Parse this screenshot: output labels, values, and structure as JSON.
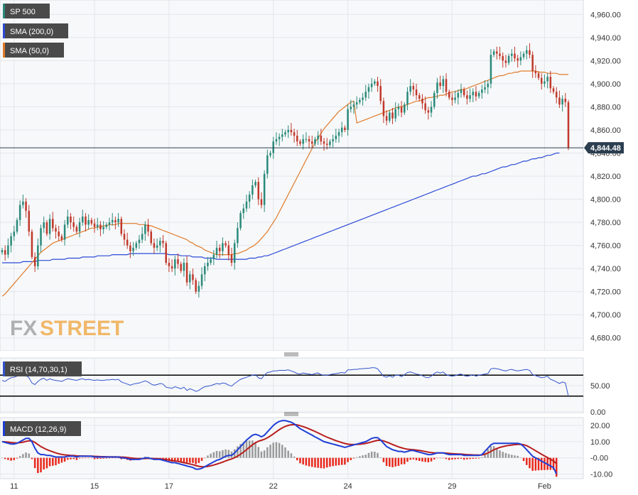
{
  "colors": {
    "background": "#ffffff",
    "plot_bg": "#f7f8fa",
    "grid": "#e3e6ea",
    "up_candle": "#2a8a7a",
    "down_candle": "#c0392b",
    "sma200": "#2b4bd6",
    "sma50": "#e07b2a",
    "rsi_line": "#3355cc",
    "macd_line": "#1f3fd6",
    "signal_line": "#b81e1e",
    "hist_pos": "#9a9a9a",
    "hist_neg": "#e8291c",
    "legend_bg": "#4a4a4a",
    "price_label_bg": "#2c3e50",
    "watermark_gray": "#b0b0b0",
    "watermark_orange": "#f0b86a"
  },
  "watermark": {
    "part1": "FX",
    "part2": "STREET"
  },
  "current_price": {
    "label": "4,844.48",
    "value": 4844.48
  },
  "x_axis": {
    "labels": [
      {
        "text": "11",
        "bar": 4
      },
      {
        "text": "15",
        "bar": 31
      },
      {
        "text": "17",
        "bar": 56
      },
      {
        "text": "22",
        "bar": 91
      },
      {
        "text": "24",
        "bar": 116
      },
      {
        "text": "29",
        "bar": 151
      },
      {
        "text": "Feb",
        "bar": 182
      }
    ]
  },
  "chart_data": [
    {
      "type": "candlestick",
      "title": "SP 500",
      "legend": [
        "SP 500",
        "SMA (200,0)",
        "SMA (50,0)"
      ],
      "ylim": [
        4670,
        4970
      ],
      "yticks": [
        "4,680.00",
        "4,700.00",
        "4,720.00",
        "4,740.00",
        "4,760.00",
        "4,780.00",
        "4,800.00",
        "4,820.00",
        "4,840.00",
        "4,860.00",
        "4,880.00",
        "4,900.00",
        "4,920.00",
        "4,940.00",
        "4,960.00"
      ],
      "ytick_values": [
        4680,
        4700,
        4720,
        4740,
        4760,
        4780,
        4800,
        4820,
        4840,
        4860,
        4880,
        4900,
        4920,
        4940,
        4960
      ],
      "grid": true,
      "close": [
        4756,
        4752,
        4760,
        4768,
        4772,
        4782,
        4795,
        4798,
        4790,
        4772,
        4750,
        4742,
        4760,
        4775,
        4780,
        4770,
        4783,
        4775,
        4772,
        4768,
        4765,
        4778,
        4785,
        4780,
        4776,
        4772,
        4780,
        4785,
        4778,
        4782,
        4779,
        4776,
        4778,
        4774,
        4776,
        4778,
        4780,
        4782,
        4780,
        4783,
        4770,
        4765,
        4760,
        4755,
        4758,
        4762,
        4765,
        4770,
        4778,
        4772,
        4762,
        4758,
        4760,
        4764,
        4762,
        4745,
        4742,
        4740,
        4748,
        4744,
        4738,
        4745,
        4728,
        4735,
        4730,
        4720,
        4725,
        4735,
        4742,
        4745,
        4748,
        4752,
        4758,
        4755,
        4762,
        4760,
        4752,
        4745,
        4762,
        4775,
        4788,
        4792,
        4798,
        4804,
        4812,
        4815,
        4800,
        4795,
        4822,
        4838,
        4840,
        4850,
        4852,
        4854,
        4856,
        4858,
        4860,
        4858,
        4855,
        4850,
        4848,
        4852,
        4852,
        4850,
        4848,
        4852,
        4855,
        4850,
        4848,
        4847,
        4850,
        4852,
        4855,
        4858,
        4862,
        4860,
        4878,
        4880,
        4882,
        4884,
        4886,
        4888,
        4893,
        4897,
        4900,
        4902,
        4898,
        4885,
        4872,
        4868,
        4875,
        4870,
        4878,
        4880,
        4875,
        4882,
        4893,
        4898,
        4895,
        4890,
        4887,
        4883,
        4877,
        4875,
        4880,
        4892,
        4901,
        4898,
        4904,
        4893,
        4888,
        4886,
        4888,
        4892,
        4895,
        4890,
        4887,
        4890,
        4893,
        4889,
        4892,
        4895,
        4897,
        4900,
        4925,
        4928,
        4926,
        4924,
        4920,
        4918,
        4924,
        4926,
        4922,
        4920,
        4923,
        4926,
        4929,
        4925,
        4911,
        4909,
        4905,
        4900,
        4902,
        4906,
        4896,
        4893,
        4888,
        4882,
        4887,
        4884,
        4844.48
      ],
      "sma_200": [
        4745,
        4745,
        4745,
        4745,
        4745,
        4745,
        4745,
        4746,
        4746,
        4746,
        4746,
        4746,
        4747,
        4747,
        4747,
        4747,
        4747,
        4748,
        4748,
        4748,
        4748,
        4748,
        4749,
        4749,
        4749,
        4749,
        4749,
        4750,
        4750,
        4750,
        4750,
        4750,
        4751,
        4751,
        4751,
        4751,
        4751,
        4752,
        4752,
        4752,
        4752,
        4752,
        4752,
        4753,
        4753,
        4753,
        4753,
        4753,
        4753,
        4753,
        4753,
        4753,
        4753,
        4753,
        4753,
        4753,
        4752,
        4752,
        4752,
        4752,
        4751,
        4751,
        4751,
        4751,
        4750,
        4750,
        4750,
        4750,
        4749,
        4749,
        4749,
        4749,
        4748,
        4748,
        4748,
        4748,
        4748,
        4748,
        4748,
        4748,
        4748,
        4748,
        4748,
        4749,
        4749,
        4749,
        4750,
        4750,
        4751,
        4751,
        4752,
        4753,
        4754,
        4755,
        4756,
        4757,
        4758,
        4759,
        4760,
        4761,
        4762,
        4763,
        4764,
        4765,
        4766,
        4767,
        4768,
        4769,
        4770,
        4771,
        4772,
        4773,
        4774,
        4775,
        4776,
        4777,
        4778,
        4779,
        4780,
        4781,
        4782,
        4783,
        4784,
        4785,
        4786,
        4787,
        4788,
        4789,
        4790,
        4791,
        4792,
        4793,
        4794,
        4795,
        4796,
        4797,
        4798,
        4799,
        4800,
        4801,
        4802,
        4803,
        4804,
        4805,
        4806,
        4807,
        4808,
        4809,
        4810,
        4811,
        4812,
        4813,
        4814,
        4815,
        4816,
        4817,
        4818,
        4819,
        4820,
        4820,
        4821,
        4822,
        4822,
        4823,
        4824,
        4825,
        4826,
        4827,
        4828,
        4828,
        4829,
        4830,
        4830,
        4831,
        4832,
        4833,
        4833,
        4834,
        4835,
        4835,
        4836,
        4836,
        4837,
        4838,
        4838,
        4839,
        4840,
        4840
      ],
      "sma_50": [
        4716,
        4718,
        4721,
        4724,
        4727,
        4730,
        4733,
        4736,
        4739,
        4742,
        4745,
        4748,
        4751,
        4754,
        4756,
        4758,
        4760,
        4762,
        4763,
        4764,
        4765,
        4766,
        4767,
        4768,
        4769,
        4770,
        4771,
        4772,
        4773,
        4774,
        4775,
        4775,
        4776,
        4776,
        4777,
        4777,
        4778,
        4778,
        4778,
        4779,
        4779,
        4779,
        4779,
        4779,
        4779,
        4779,
        4778,
        4778,
        4778,
        4777,
        4777,
        4776,
        4775,
        4774,
        4773,
        4772,
        4771,
        4770,
        4769,
        4768,
        4767,
        4766,
        4765,
        4763,
        4762,
        4760,
        4759,
        4758,
        4756,
        4755,
        4754,
        4753,
        4752,
        4752,
        4752,
        4752,
        4752,
        4752,
        4753,
        4753,
        4754,
        4755,
        4756,
        4758,
        4759,
        4761,
        4763,
        4766,
        4769,
        4772,
        4776,
        4780,
        4784,
        4789,
        4794,
        4799,
        4804,
        4809,
        4814,
        4819,
        4824,
        4829,
        4834,
        4839,
        4844,
        4849,
        4853,
        4857,
        4861,
        4864,
        4867,
        4870,
        4873,
        4876,
        4878,
        4880,
        4882,
        4884,
        4885,
        4866,
        4867,
        4868,
        4869,
        4870,
        4871,
        4872,
        4873,
        4874,
        4875,
        4876,
        4877,
        4878,
        4879,
        4880,
        4880,
        4881,
        4882,
        4883,
        4884,
        4885,
        4885,
        4886,
        4887,
        4888,
        4888,
        4889,
        4889,
        4890,
        4890,
        4891,
        4892,
        4893,
        4893,
        4894,
        4895,
        4895,
        4896,
        4897,
        4898,
        4899,
        4900,
        4901,
        4902,
        4903,
        4904,
        4905,
        4906,
        4907,
        4907,
        4908,
        4909,
        4909,
        4910,
        4910,
        4911,
        4911,
        4911,
        4911,
        4911,
        4911,
        4910,
        4910,
        4910,
        4909,
        4909,
        4909,
        4909,
        4908,
        4908,
        4908,
        4908
      ]
    },
    {
      "type": "line",
      "title": "RSI (14,70,30,1)",
      "legend": [
        "RSI (14,70,30,1)"
      ],
      "ylim": [
        0,
        100
      ],
      "yticks": [
        "0.00",
        "50.00"
      ],
      "ytick_values": [
        0,
        50
      ],
      "overbought": 70,
      "oversold": 30,
      "values": [
        60,
        58,
        62,
        65,
        66,
        68,
        70,
        71,
        69,
        65,
        55,
        52,
        58,
        62,
        64,
        60,
        63,
        61,
        60,
        59,
        58,
        61,
        63,
        62,
        61,
        60,
        62,
        63,
        61,
        62,
        61,
        60,
        61,
        60,
        60,
        61,
        61,
        62,
        61,
        62,
        57,
        55,
        53,
        51,
        53,
        54,
        55,
        57,
        59,
        57,
        53,
        51,
        52,
        54,
        53,
        47,
        46,
        45,
        48,
        46,
        44,
        47,
        41,
        44,
        42,
        39,
        41,
        45,
        48,
        49,
        50,
        52,
        54,
        53,
        55,
        54,
        51,
        49,
        54,
        58,
        62,
        64,
        66,
        68,
        70,
        71,
        65,
        63,
        70,
        75,
        76,
        78,
        78,
        79,
        79,
        79,
        80,
        78,
        76,
        73,
        72,
        74,
        73,
        72,
        71,
        73,
        74,
        71,
        70,
        70,
        71,
        72,
        73,
        74,
        75,
        74,
        80,
        80,
        81,
        81,
        82,
        82,
        83,
        83,
        84,
        84,
        82,
        75,
        68,
        66,
        69,
        66,
        70,
        70,
        67,
        71,
        75,
        76,
        74,
        72,
        71,
        69,
        66,
        65,
        68,
        73,
        76,
        74,
        76,
        71,
        69,
        68,
        69,
        71,
        72,
        69,
        68,
        69,
        71,
        68,
        70,
        71,
        72,
        73,
        82,
        83,
        82,
        81,
        79,
        78,
        80,
        81,
        79,
        78,
        79,
        80,
        81,
        79,
        71,
        69,
        67,
        65,
        66,
        68,
        62,
        60,
        57,
        54,
        57,
        55,
        30
      ]
    },
    {
      "type": "bar+line",
      "title": "MACD (12,26,9)",
      "legend": [
        "MACD (12,26,9)"
      ],
      "ylim": [
        -12,
        24
      ],
      "yticks": [
        "-10.00",
        "-0.00",
        "10.00",
        "20.00"
      ],
      "ytick_values": [
        -10,
        0,
        10,
        20
      ],
      "macd": [
        10,
        9.5,
        9,
        8.5,
        8.5,
        9,
        10,
        11,
        12,
        12,
        10,
        6,
        3,
        2,
        2,
        1.5,
        1.5,
        1,
        0.5,
        0.5,
        0.5,
        0.5,
        1,
        1,
        1,
        0.5,
        1,
        1,
        1,
        1,
        1,
        0.5,
        0.5,
        0.5,
        0.5,
        0.5,
        0.5,
        0.5,
        0.5,
        0.5,
        0,
        0,
        -0.5,
        -1,
        -1,
        -1,
        -1,
        -0.5,
        0,
        0,
        -0.5,
        -1,
        -1,
        -1,
        -1.5,
        -2,
        -2.5,
        -3,
        -3,
        -3.5,
        -4,
        -4.5,
        -5,
        -5.5,
        -6,
        -7,
        -7,
        -6.5,
        -5.5,
        -4.5,
        -3.5,
        -2.5,
        -1.5,
        -1,
        0,
        1,
        1.5,
        1.5,
        3,
        5,
        7,
        9,
        11,
        12.5,
        14,
        14.5,
        14,
        13,
        14,
        16,
        18,
        20,
        21.5,
        22.5,
        23,
        23,
        22.5,
        22,
        21,
        19.5,
        18,
        17,
        16,
        15,
        14,
        13,
        12,
        11,
        10,
        9.5,
        9,
        8.5,
        8,
        7.5,
        7,
        6.5,
        7,
        7.5,
        8,
        8.5,
        9,
        9.5,
        10,
        11,
        12,
        12.5,
        12.5,
        11,
        9,
        7,
        6,
        5,
        4.5,
        4,
        4,
        3.5,
        4,
        4.5,
        4.5,
        4,
        3.5,
        3,
        2.5,
        2,
        2,
        2.5,
        3,
        3,
        3,
        2.5,
        2,
        2,
        2,
        2,
        2,
        1.5,
        1.5,
        1.5,
        1.5,
        1.5,
        1.5,
        2,
        4,
        6,
        8,
        9,
        9,
        9,
        9,
        9,
        9,
        9,
        9,
        9,
        8.5,
        7,
        5,
        3,
        1,
        0,
        -1,
        -2,
        -3,
        -4,
        -5,
        -6,
        -10
      ]
    }
  ]
}
